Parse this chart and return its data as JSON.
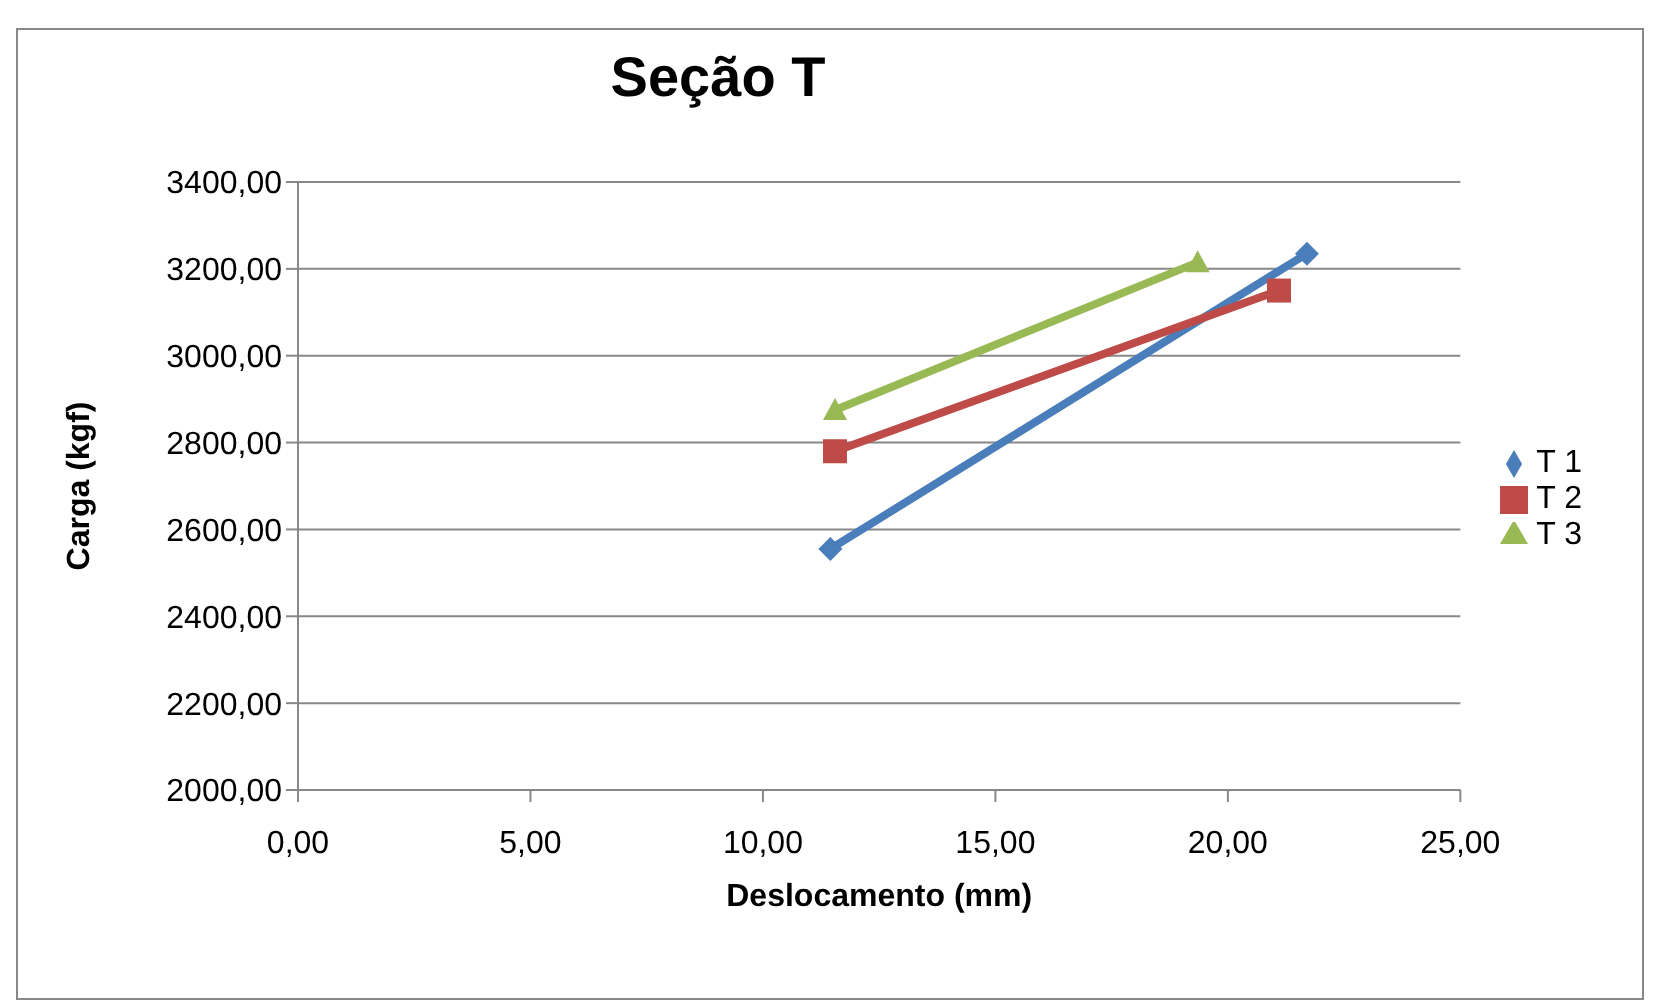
{
  "chart_data": {
    "type": "line",
    "title": "Seção T",
    "xlabel": "Deslocamento (mm)",
    "ylabel": "Carga (kgf)",
    "xlim": [
      0,
      25
    ],
    "xticks": [
      {
        "value": 0,
        "label": "0,00"
      },
      {
        "value": 5,
        "label": "5,00"
      },
      {
        "value": 10,
        "label": "10,00"
      },
      {
        "value": 15,
        "label": "15,00"
      },
      {
        "value": 20,
        "label": "20,00"
      },
      {
        "value": 25,
        "label": "25,00"
      }
    ],
    "ylim": [
      2000,
      3400
    ],
    "yticks": [
      {
        "value": 2000,
        "label": "2000,00"
      },
      {
        "value": 2200,
        "label": "2200,00"
      },
      {
        "value": 2400,
        "label": "2400,00"
      },
      {
        "value": 2600,
        "label": "2600,00"
      },
      {
        "value": 2800,
        "label": "2800,00"
      },
      {
        "value": 3000,
        "label": "3000,00"
      },
      {
        "value": 3200,
        "label": "3200,00"
      },
      {
        "value": 3400,
        "label": "3400,00"
      }
    ],
    "grid": "y",
    "legend": "right",
    "line_style": "solid",
    "series": [
      {
        "name": "T 1",
        "color": "#4a7ebb",
        "marker": "diamond",
        "x": [
          11.45,
          21.7
        ],
        "values": [
          2555,
          3235
        ]
      },
      {
        "name": "T 2",
        "color": "#be4b48",
        "marker": "square",
        "x": [
          11.55,
          21.1
        ],
        "values": [
          2780,
          3150
        ]
      },
      {
        "name": "T 3",
        "color": "#98b954",
        "marker": "triangle",
        "x": [
          11.55,
          19.35
        ],
        "values": [
          2875,
          3215
        ]
      }
    ]
  }
}
